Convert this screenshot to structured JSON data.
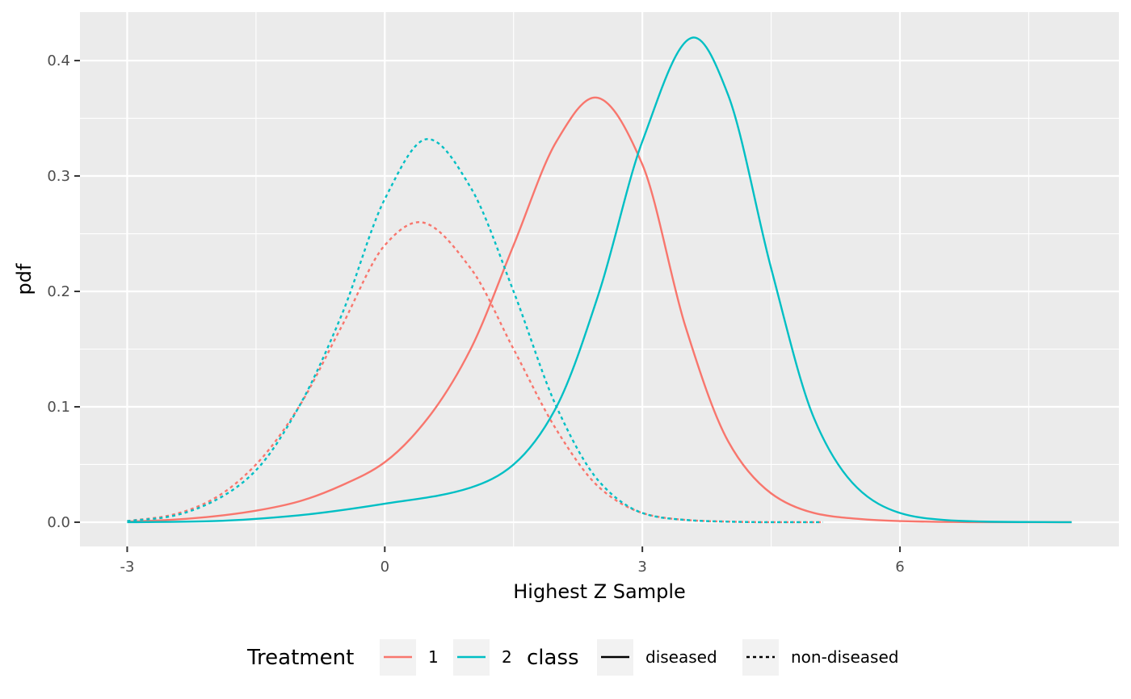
{
  "chart_data": {
    "type": "line",
    "title": "",
    "xlabel": "Highest Z Sample",
    "ylabel": "pdf",
    "xlim": [
      -3.55,
      8.55
    ],
    "ylim": [
      -0.021,
      0.442
    ],
    "x_ticks": [
      -3,
      0,
      3,
      6
    ],
    "x_tick_labels": [
      "-3",
      "0",
      "3",
      "6"
    ],
    "y_ticks": [
      0.0,
      0.1,
      0.2,
      0.3,
      0.4
    ],
    "y_tick_labels": [
      "0.0",
      "0.1",
      "0.2",
      "0.3",
      "0.4"
    ],
    "grid": true,
    "legend_position": "bottom",
    "legends": [
      {
        "title": "Treatment",
        "aesthetic": "color",
        "entries": [
          {
            "label": "1",
            "color": "#F8766D"
          },
          {
            "label": "2",
            "color": "#00BFC4"
          }
        ]
      },
      {
        "title": "class",
        "aesthetic": "linetype",
        "entries": [
          {
            "label": "diseased",
            "linetype": "solid"
          },
          {
            "label": "non-diseased",
            "linetype": "dotted"
          }
        ]
      }
    ],
    "series": [
      {
        "treatment": "1",
        "class": "diseased",
        "color": "#F8766D",
        "linetype": "solid",
        "x": [
          -3,
          -2.5,
          -2,
          -1.5,
          -1,
          -0.5,
          0,
          0.5,
          1,
          1.5,
          2,
          2.45,
          3,
          3.5,
          4,
          4.5,
          5,
          5.5,
          6,
          7,
          8
        ],
        "y": [
          0.0005,
          0.002,
          0.005,
          0.01,
          0.018,
          0.032,
          0.052,
          0.09,
          0.15,
          0.24,
          0.33,
          0.368,
          0.31,
          0.17,
          0.07,
          0.025,
          0.008,
          0.003,
          0.001,
          0.0,
          0.0
        ]
      },
      {
        "treatment": "2",
        "class": "diseased",
        "color": "#00BFC4",
        "linetype": "solid",
        "x": [
          -3,
          -2,
          -1,
          0,
          1,
          1.5,
          2,
          2.5,
          3,
          3.6,
          4,
          4.5,
          5,
          5.5,
          6,
          6.5,
          7,
          8
        ],
        "y": [
          0.0,
          0.001,
          0.006,
          0.016,
          0.03,
          0.05,
          0.1,
          0.2,
          0.33,
          0.42,
          0.37,
          0.22,
          0.09,
          0.03,
          0.008,
          0.002,
          0.0005,
          0.0
        ]
      },
      {
        "treatment": "1",
        "class": "non-diseased",
        "color": "#F8766D",
        "linetype": "dotted",
        "x": [
          -3,
          -2.5,
          -2,
          -1.5,
          -1,
          -0.5,
          0,
          0.4,
          1,
          1.5,
          2,
          2.5,
          3,
          3.5,
          4,
          4.5,
          5.1
        ],
        "y": [
          0.001,
          0.006,
          0.02,
          0.05,
          0.1,
          0.17,
          0.24,
          0.26,
          0.22,
          0.15,
          0.08,
          0.03,
          0.008,
          0.002,
          0.0005,
          0.0,
          0.0
        ]
      },
      {
        "treatment": "2",
        "class": "non-diseased",
        "color": "#00BFC4",
        "linetype": "dotted",
        "x": [
          -3,
          -2.5,
          -2,
          -1.5,
          -1,
          -0.5,
          0,
          0.5,
          1,
          1.5,
          2,
          2.5,
          3,
          3.5,
          4,
          4.5,
          5.1
        ],
        "y": [
          0.001,
          0.005,
          0.018,
          0.045,
          0.1,
          0.18,
          0.28,
          0.332,
          0.29,
          0.2,
          0.1,
          0.035,
          0.008,
          0.002,
          0.0005,
          0.0,
          0.0
        ]
      }
    ]
  }
}
